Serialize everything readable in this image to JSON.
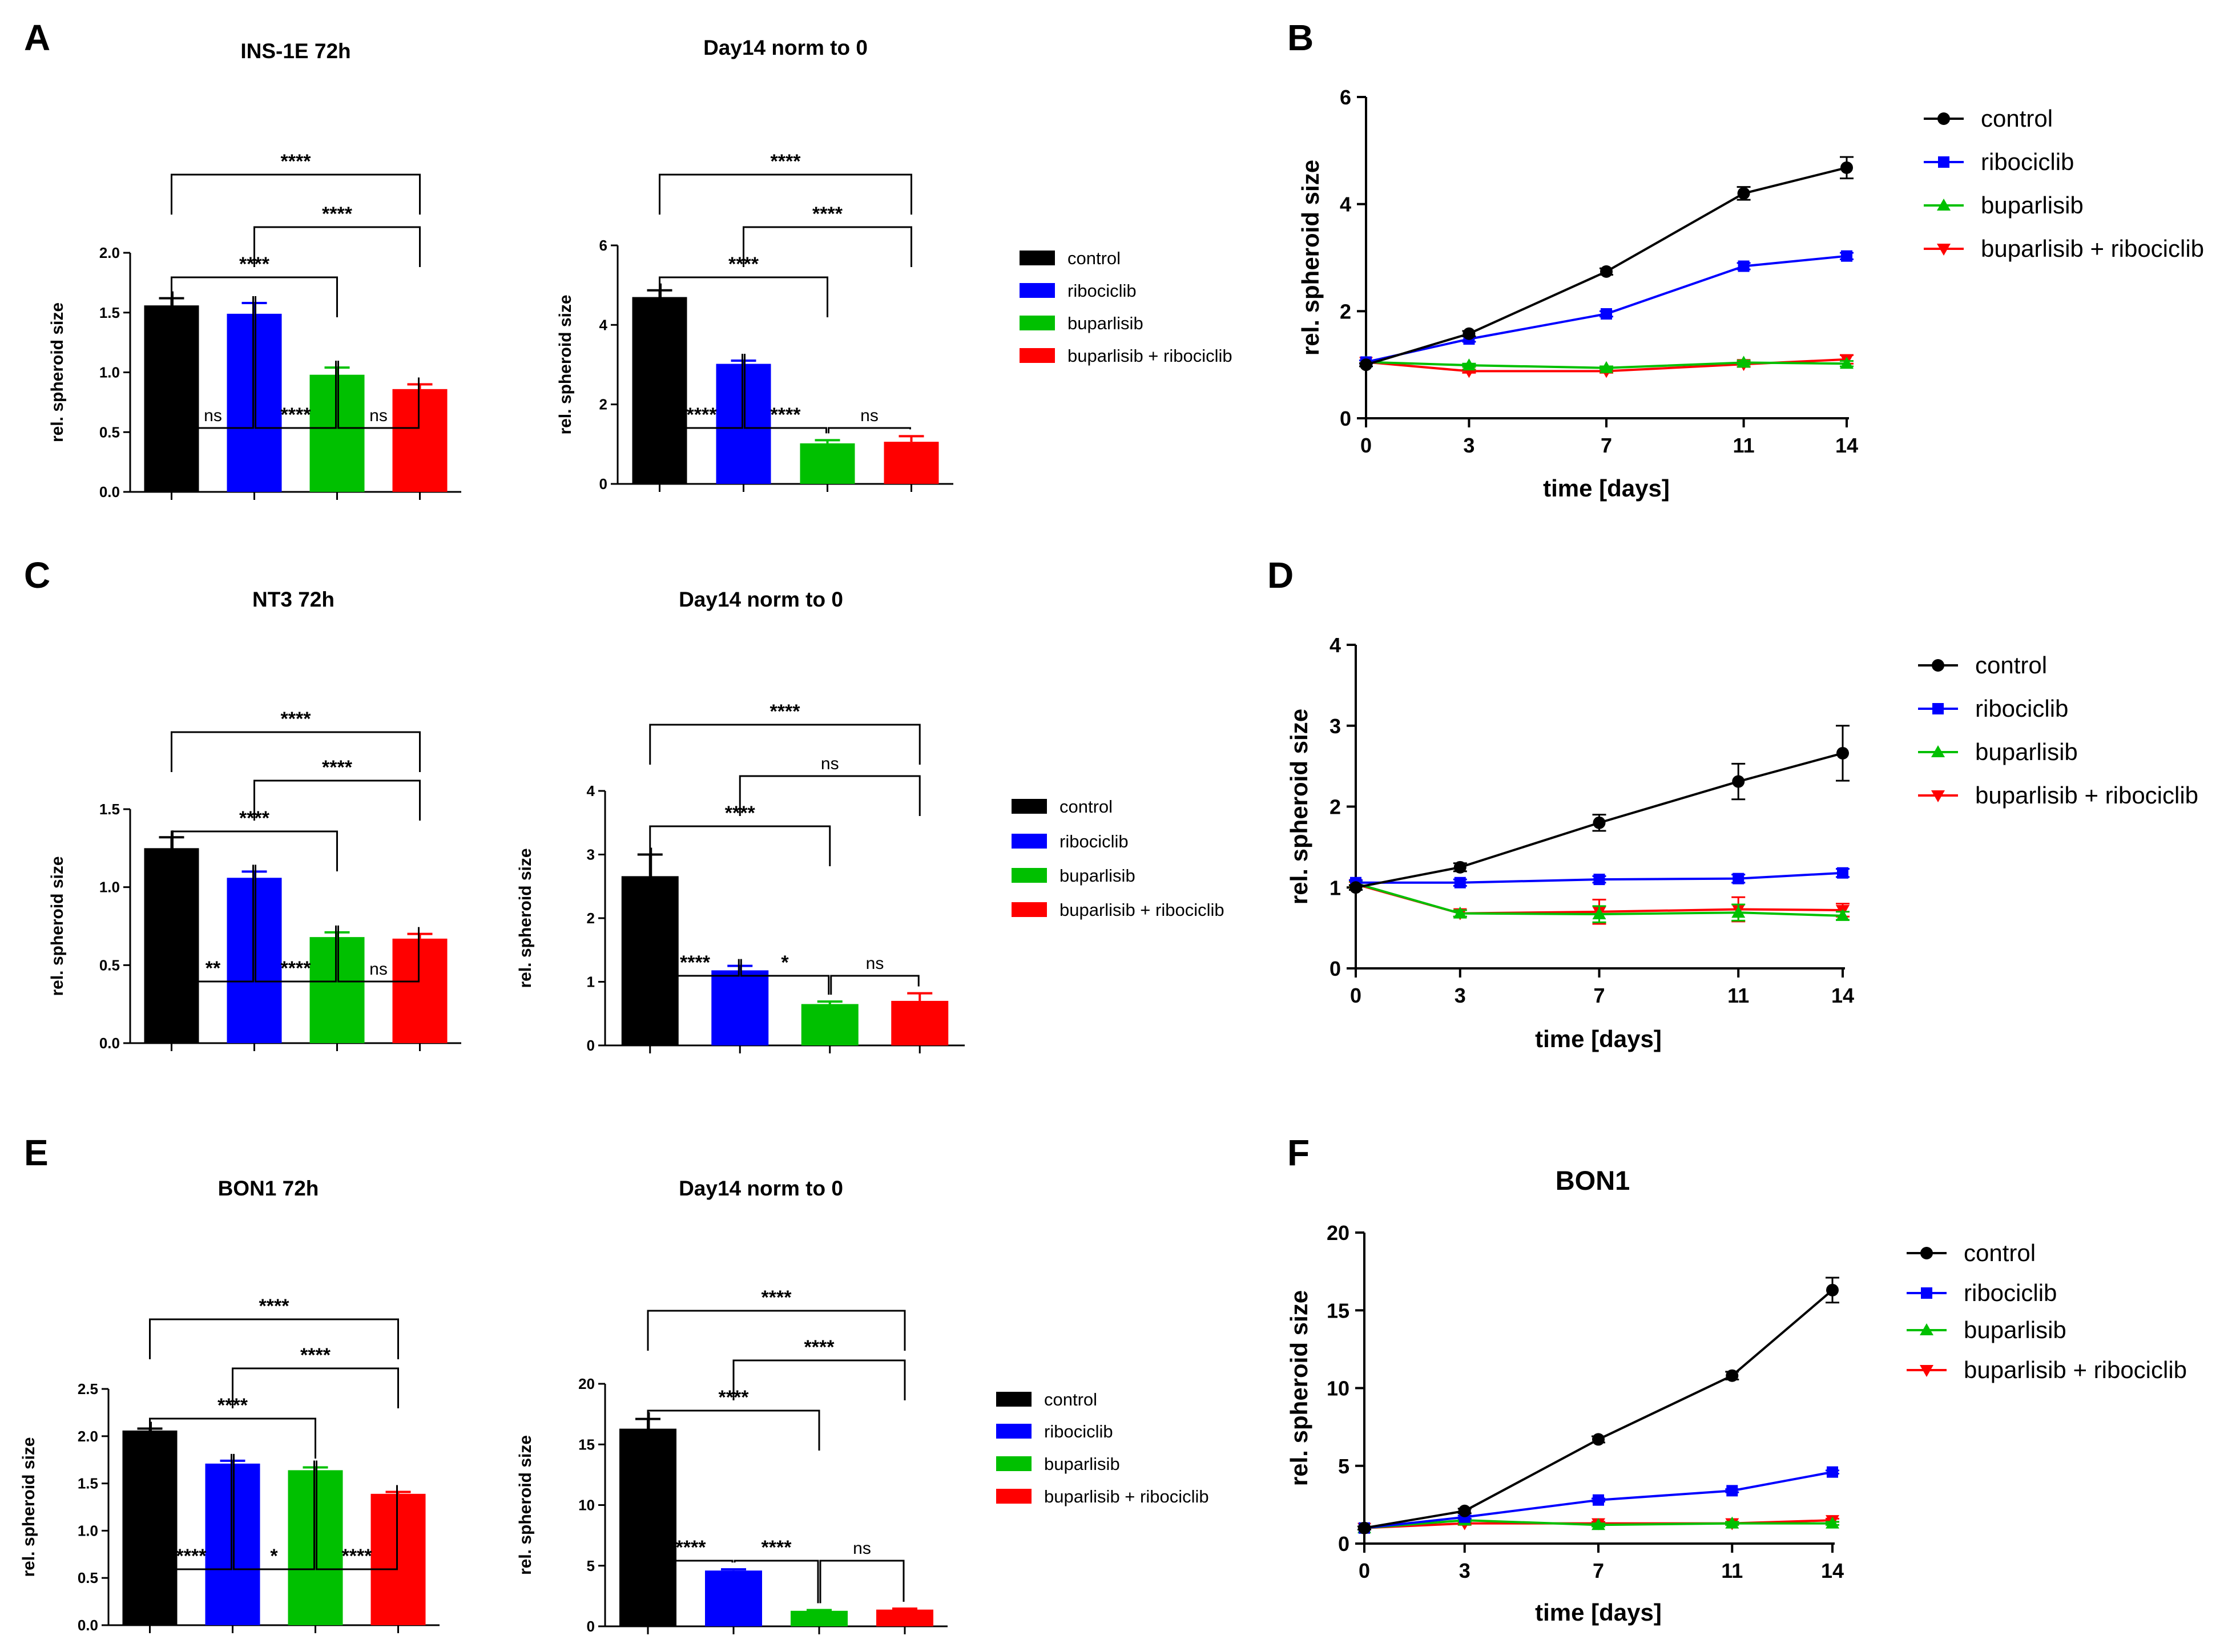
{
  "panel_labels": [
    "A",
    "B",
    "C",
    "D",
    "E",
    "F"
  ],
  "legend": [
    "control",
    "ribociclib",
    "buparlisib",
    "buparlisib + ribociclib"
  ],
  "colors": {
    "control": "#000000",
    "ribociclib": "#0000ff",
    "buparlisib": "#00c000",
    "combo": "#ff0000"
  },
  "chart_data": [
    {
      "id": "A1",
      "type": "bar",
      "title": "INS-1E 72h",
      "ylabel": "rel. spheroid size",
      "categories": [
        "control",
        "ribociclib",
        "buparlisib",
        "buparlisib + ribociclib"
      ],
      "values": [
        1.56,
        1.49,
        0.98,
        0.86
      ],
      "errors": [
        0.06,
        0.09,
        0.06,
        0.04
      ],
      "ylim": [
        0,
        2.0
      ],
      "yticks": [
        0,
        0.5,
        1.0,
        1.5,
        2.0
      ],
      "yticklabels": [
        "0.0",
        "0.5",
        "1.0",
        "1.5",
        "2.0"
      ],
      "comparisons": [
        {
          "from": 0,
          "to": 3,
          "label": "****"
        },
        {
          "from": 1,
          "to": 3,
          "label": "****"
        },
        {
          "from": 0,
          "to": 2,
          "label": "****"
        },
        {
          "from": 0,
          "to": 1,
          "label": "ns"
        },
        {
          "from": 1,
          "to": 2,
          "label": "****"
        },
        {
          "from": 2,
          "to": 3,
          "label": "ns"
        }
      ]
    },
    {
      "id": "A2",
      "type": "bar",
      "title": "Day14 norm to 0",
      "ylabel": "rel. spheroid size",
      "categories": [
        "control",
        "ribociclib",
        "buparlisib",
        "buparlisib + ribociclib"
      ],
      "values": [
        4.7,
        3.02,
        1.02,
        1.06
      ],
      "errors": [
        0.17,
        0.08,
        0.08,
        0.14
      ],
      "ylim": [
        0,
        6
      ],
      "yticks": [
        0,
        2,
        4,
        6
      ],
      "yticklabels": [
        "0",
        "2",
        "4",
        "6"
      ],
      "comparisons": [
        {
          "from": 0,
          "to": 3,
          "label": "****"
        },
        {
          "from": 1,
          "to": 3,
          "label": "****"
        },
        {
          "from": 0,
          "to": 2,
          "label": "****"
        },
        {
          "from": 0,
          "to": 1,
          "label": "****"
        },
        {
          "from": 1,
          "to": 2,
          "label": "****"
        },
        {
          "from": 2,
          "to": 3,
          "label": "ns"
        }
      ]
    },
    {
      "id": "B",
      "type": "line",
      "title": "",
      "xlabel": "time [days]",
      "ylabel": "rel. spheroid size",
      "x": [
        0,
        3,
        7,
        11,
        14
      ],
      "xlim": [
        0,
        14
      ],
      "ylim": [
        0,
        6
      ],
      "xticks": [
        0,
        3,
        7,
        11,
        14
      ],
      "yticks": [
        0,
        2,
        4,
        6
      ],
      "series": [
        {
          "name": "control",
          "values": [
            1.0,
            1.58,
            2.74,
            4.2,
            4.68
          ],
          "errors": [
            0.03,
            0.05,
            0.06,
            0.12,
            0.2
          ]
        },
        {
          "name": "ribociclib",
          "values": [
            1.05,
            1.48,
            1.95,
            2.84,
            3.03
          ],
          "errors": [
            0.03,
            0.05,
            0.05,
            0.06,
            0.06
          ]
        },
        {
          "name": "buparlisib",
          "values": [
            1.05,
            0.99,
            0.94,
            1.04,
            1.02
          ],
          "errors": [
            0.03,
            0.03,
            0.03,
            0.04,
            0.05
          ]
        },
        {
          "name": "buparlisib + ribociclib",
          "values": [
            1.05,
            0.88,
            0.88,
            1.01,
            1.1
          ],
          "errors": [
            0.03,
            0.03,
            0.03,
            0.05,
            0.08
          ]
        }
      ]
    },
    {
      "id": "C1",
      "type": "bar",
      "title": "NT3 72h",
      "ylabel": "rel. spheroid size",
      "categories": [
        "control",
        "ribociclib",
        "buparlisib",
        "buparlisib + ribociclib"
      ],
      "values": [
        1.25,
        1.06,
        0.68,
        0.67
      ],
      "errors": [
        0.07,
        0.04,
        0.03,
        0.03
      ],
      "ylim": [
        0,
        1.5
      ],
      "yticks": [
        0,
        0.5,
        1.0,
        1.5
      ],
      "yticklabels": [
        "0.0",
        "0.5",
        "1.0",
        "1.5"
      ],
      "comparisons": [
        {
          "from": 0,
          "to": 3,
          "label": "****"
        },
        {
          "from": 1,
          "to": 3,
          "label": "****"
        },
        {
          "from": 0,
          "to": 2,
          "label": "****"
        },
        {
          "from": 0,
          "to": 1,
          "label": "**"
        },
        {
          "from": 1,
          "to": 2,
          "label": "****"
        },
        {
          "from": 2,
          "to": 3,
          "label": "ns"
        }
      ]
    },
    {
      "id": "C2",
      "type": "bar",
      "title": "Day14 norm to 0",
      "ylabel": "rel. spheroid size",
      "categories": [
        "control",
        "ribociclib",
        "buparlisib",
        "buparlisib + ribociclib"
      ],
      "values": [
        2.66,
        1.18,
        0.65,
        0.7
      ],
      "errors": [
        0.34,
        0.07,
        0.04,
        0.12
      ],
      "ylim": [
        0,
        4
      ],
      "yticks": [
        0,
        1,
        2,
        3,
        4
      ],
      "yticklabels": [
        "0",
        "1",
        "2",
        "3",
        "4"
      ],
      "comparisons": [
        {
          "from": 0,
          "to": 3,
          "label": "****"
        },
        {
          "from": 1,
          "to": 3,
          "label": "ns"
        },
        {
          "from": 0,
          "to": 2,
          "label": "****"
        },
        {
          "from": 0,
          "to": 1,
          "label": "****"
        },
        {
          "from": 1,
          "to": 2,
          "label": "*"
        },
        {
          "from": 2,
          "to": 3,
          "label": "ns"
        }
      ]
    },
    {
      "id": "D",
      "type": "line",
      "title": "",
      "xlabel": "time [days]",
      "ylabel": "rel. spheroid size",
      "x": [
        0,
        3,
        7,
        11,
        14
      ],
      "xlim": [
        0,
        14
      ],
      "ylim": [
        0,
        4
      ],
      "xticks": [
        0,
        3,
        7,
        11,
        14
      ],
      "yticks": [
        0,
        1,
        2,
        3,
        4
      ],
      "series": [
        {
          "name": "control",
          "values": [
            1.0,
            1.25,
            1.8,
            2.31,
            2.66
          ],
          "errors": [
            0.03,
            0.05,
            0.1,
            0.22,
            0.34
          ]
        },
        {
          "name": "ribociclib",
          "values": [
            1.06,
            1.06,
            1.1,
            1.11,
            1.18
          ],
          "errors": [
            0.03,
            0.04,
            0.04,
            0.05,
            0.05
          ]
        },
        {
          "name": "buparlisib",
          "values": [
            1.05,
            0.68,
            0.67,
            0.69,
            0.65
          ],
          "errors": [
            0.03,
            0.04,
            0.1,
            0.1,
            0.05
          ]
        },
        {
          "name": "buparlisib + ribociclib",
          "values": [
            1.04,
            0.68,
            0.7,
            0.73,
            0.72
          ],
          "errors": [
            0.03,
            0.04,
            0.15,
            0.15,
            0.08
          ]
        }
      ]
    },
    {
      "id": "E1",
      "type": "bar",
      "title": "BON1 72h",
      "ylabel": "rel. spheroid size",
      "categories": [
        "control",
        "ribociclib",
        "buparlisib",
        "buparlisib + ribociclib"
      ],
      "values": [
        2.06,
        1.71,
        1.64,
        1.39
      ],
      "errors": [
        0.02,
        0.03,
        0.03,
        0.02
      ],
      "ylim": [
        0,
        2.5
      ],
      "yticks": [
        0,
        0.5,
        1.0,
        1.5,
        2.0,
        2.5
      ],
      "yticklabels": [
        "0.0",
        "0.5",
        "1.0",
        "1.5",
        "2.0",
        "2.5"
      ],
      "comparisons": [
        {
          "from": 0,
          "to": 3,
          "label": "****"
        },
        {
          "from": 1,
          "to": 3,
          "label": "****"
        },
        {
          "from": 0,
          "to": 2,
          "label": "****"
        },
        {
          "from": 0,
          "to": 1,
          "label": "****"
        },
        {
          "from": 1,
          "to": 2,
          "label": "*"
        },
        {
          "from": 2,
          "to": 3,
          "label": "****"
        }
      ]
    },
    {
      "id": "E2",
      "type": "bar",
      "title": "Day14 norm to 0",
      "ylabel": "rel. spheroid size",
      "categories": [
        "control",
        "ribociclib",
        "buparlisib",
        "buparlisib + ribociclib"
      ],
      "values": [
        16.3,
        4.6,
        1.28,
        1.38
      ],
      "errors": [
        0.8,
        0.1,
        0.06,
        0.08
      ],
      "ylim": [
        0,
        20
      ],
      "yticks": [
        0,
        5,
        10,
        15,
        20
      ],
      "yticklabels": [
        "0",
        "5",
        "10",
        "15",
        "20"
      ],
      "comparisons": [
        {
          "from": 0,
          "to": 3,
          "label": "****"
        },
        {
          "from": 1,
          "to": 3,
          "label": "****"
        },
        {
          "from": 0,
          "to": 2,
          "label": "****"
        },
        {
          "from": 0,
          "to": 1,
          "label": "****"
        },
        {
          "from": 1,
          "to": 2,
          "label": "****"
        },
        {
          "from": 2,
          "to": 3,
          "label": "ns"
        }
      ]
    },
    {
      "id": "F",
      "type": "line",
      "title": "BON1",
      "xlabel": "time [days]",
      "ylabel": "rel. spheroid size",
      "x": [
        0,
        3,
        7,
        11,
        14
      ],
      "xlim": [
        0,
        14
      ],
      "ylim": [
        0,
        20
      ],
      "xticks": [
        0,
        3,
        7,
        11,
        14
      ],
      "yticks": [
        0,
        5,
        10,
        15,
        20
      ],
      "series": [
        {
          "name": "control",
          "values": [
            1.0,
            2.1,
            6.7,
            10.8,
            16.3
          ],
          "errors": [
            0.1,
            0.15,
            0.2,
            0.25,
            0.8
          ]
        },
        {
          "name": "ribociclib",
          "values": [
            1.0,
            1.7,
            2.8,
            3.4,
            4.6
          ],
          "errors": [
            0.1,
            0.1,
            0.1,
            0.1,
            0.1
          ]
        },
        {
          "name": "buparlisib",
          "values": [
            1.0,
            1.5,
            1.2,
            1.3,
            1.3
          ],
          "errors": [
            0.1,
            0.1,
            0.1,
            0.1,
            0.1
          ]
        },
        {
          "name": "buparlisib + ribociclib",
          "values": [
            1.0,
            1.3,
            1.3,
            1.3,
            1.5
          ],
          "errors": [
            0.1,
            0.1,
            0.1,
            0.1,
            0.1
          ]
        }
      ]
    }
  ]
}
